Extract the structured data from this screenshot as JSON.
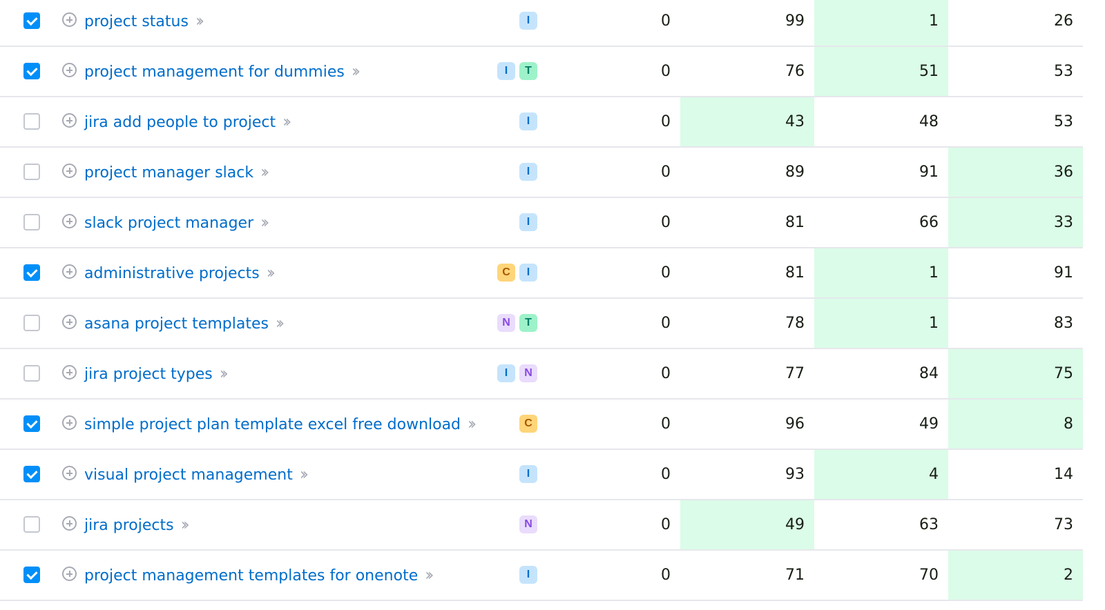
{
  "colors": {
    "highlight": "#dbfce8",
    "link": "#006dca",
    "checkbox_checked": "#008ff8"
  },
  "rows": [
    {
      "checked": true,
      "keyword": "project status",
      "intents": [
        "I"
      ],
      "values": [
        "0",
        "99",
        "1",
        "26"
      ],
      "highlight": 2
    },
    {
      "checked": true,
      "keyword": "project management for dummies",
      "intents": [
        "I",
        "T"
      ],
      "values": [
        "0",
        "76",
        "51",
        "53"
      ],
      "highlight": 2
    },
    {
      "checked": false,
      "keyword": "jira add people to project",
      "intents": [
        "I"
      ],
      "values": [
        "0",
        "43",
        "48",
        "53"
      ],
      "highlight": 1
    },
    {
      "checked": false,
      "keyword": "project manager slack",
      "intents": [
        "I"
      ],
      "values": [
        "0",
        "89",
        "91",
        "36"
      ],
      "highlight": 3
    },
    {
      "checked": false,
      "keyword": "slack project manager",
      "intents": [
        "I"
      ],
      "values": [
        "0",
        "81",
        "66",
        "33"
      ],
      "highlight": 3
    },
    {
      "checked": true,
      "keyword": "administrative projects",
      "intents": [
        "C",
        "I"
      ],
      "values": [
        "0",
        "81",
        "1",
        "91"
      ],
      "highlight": 2
    },
    {
      "checked": false,
      "keyword": "asana project templates",
      "intents": [
        "N",
        "T"
      ],
      "values": [
        "0",
        "78",
        "1",
        "83"
      ],
      "highlight": 2
    },
    {
      "checked": false,
      "keyword": "jira project types",
      "intents": [
        "I",
        "N"
      ],
      "values": [
        "0",
        "77",
        "84",
        "75"
      ],
      "highlight": 3
    },
    {
      "checked": true,
      "keyword": "simple project plan template excel free download",
      "intents": [
        "C"
      ],
      "values": [
        "0",
        "96",
        "49",
        "8"
      ],
      "highlight": 3
    },
    {
      "checked": true,
      "keyword": "visual project management",
      "intents": [
        "I"
      ],
      "values": [
        "0",
        "93",
        "4",
        "14"
      ],
      "highlight": 2
    },
    {
      "checked": false,
      "keyword": "jira projects",
      "intents": [
        "N"
      ],
      "values": [
        "0",
        "49",
        "63",
        "73"
      ],
      "highlight": 1
    },
    {
      "checked": true,
      "keyword": "project management templates for onenote",
      "intents": [
        "I"
      ],
      "values": [
        "0",
        "71",
        "70",
        "2"
      ],
      "highlight": 3
    }
  ]
}
